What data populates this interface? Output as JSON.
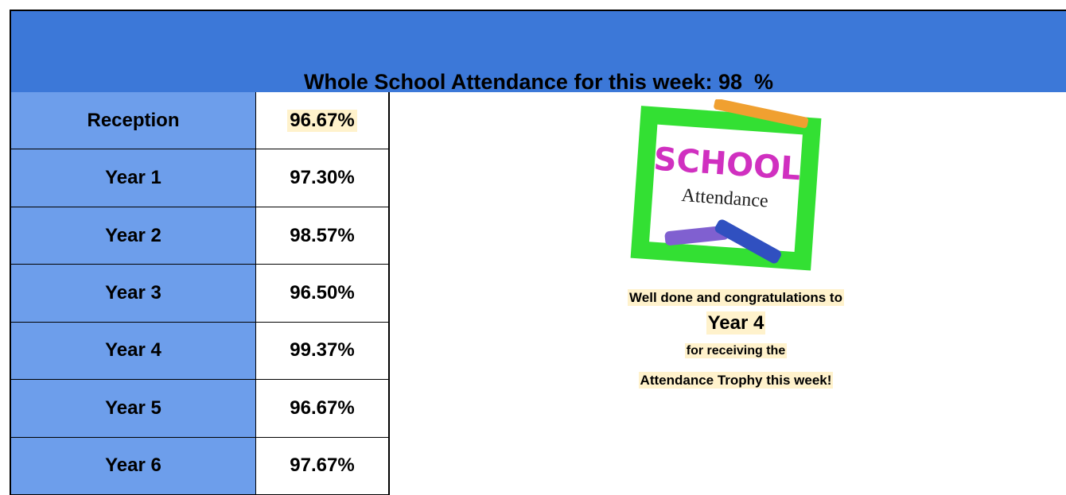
{
  "header": {
    "title": "Whole School Attendance for this week: 98  %"
  },
  "table": {
    "rows": [
      [
        "Reception",
        "96.67%"
      ],
      [
        "Year 1",
        "97.30%"
      ],
      [
        "Year 2",
        "98.57%"
      ],
      [
        "Year 3",
        "96.50%"
      ],
      [
        "Year 4",
        "99.37%"
      ],
      [
        "Year 5",
        "96.67%"
      ],
      [
        "Year 6",
        "97.67%"
      ]
    ]
  },
  "image": {
    "line1": "SCHOOL",
    "line2": "Attendance"
  },
  "message": {
    "line1": "Well done and congratulations to",
    "winner": "Year 4",
    "line2": "for receiving the",
    "line3": "Attendance Trophy this week!"
  }
}
